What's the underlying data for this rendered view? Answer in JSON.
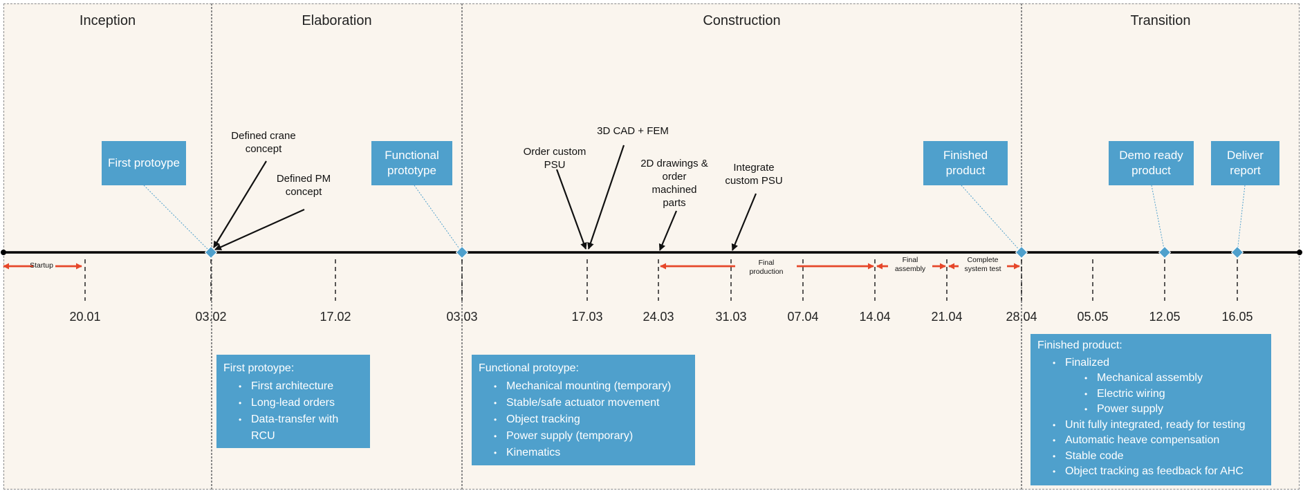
{
  "phases": [
    {
      "name": "Inception"
    },
    {
      "name": "Elaboration"
    },
    {
      "name": "Construction"
    },
    {
      "name": "Transition"
    }
  ],
  "dates": [
    "20.01",
    "03.02",
    "17.02",
    "03.03",
    "17.03",
    "24.03",
    "31.03",
    "07.04",
    "14.04",
    "21.04",
    "28.04",
    "05.05",
    "12.05",
    "16.05"
  ],
  "milestones": {
    "first_prototype": "First protoype",
    "functional_prototype": "Functional prototype",
    "finished_product": "Finished product",
    "demo_ready": "Demo ready product",
    "deliver_report": "Deliver report"
  },
  "annotations": {
    "defined_crane": "Defined crane concept",
    "defined_pm": "Defined PM concept",
    "order_psu": "Order custom PSU",
    "cad_fem": "3D CAD + FEM",
    "drawings": "2D drawings & order machined parts",
    "integrate_psu": "Integrate custom PSU"
  },
  "durations": {
    "startup": "Startup",
    "final_production": "Final production",
    "final_assembly": "Final assembly",
    "system_test": "Complete system test"
  },
  "panels": {
    "first": {
      "title": "First protoype:",
      "items": [
        "First architecture",
        "Long-lead orders",
        "Data-transfer with RCU"
      ]
    },
    "functional": {
      "title": "Functional protoype:",
      "items": [
        "Mechanical mounting (temporary)",
        "Stable/safe actuator movement",
        "Object tracking",
        "Power supply (temporary)",
        "Kinematics"
      ]
    },
    "finished": {
      "title": "Finished product:",
      "finalized": "Finalized",
      "sub_items": [
        "Mechanical assembly",
        "Electric wiring",
        "Power supply"
      ],
      "items": [
        "Unit fully integrated, ready for testing",
        "Automatic heave compensation",
        "Stable code",
        "Object tracking as feedback for AHC"
      ]
    }
  },
  "colors": {
    "background": "#faf5ee",
    "box": "#4fa0cc",
    "arrow": "#e6472a",
    "timeline": "#000000"
  }
}
